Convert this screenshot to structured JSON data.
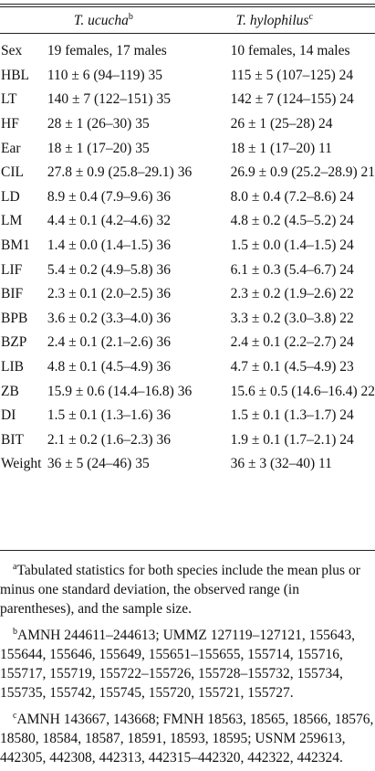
{
  "header": {
    "species1": "T. ucucha",
    "species1_mark": "b",
    "species2": "T. hylophilus",
    "species2_mark": "c"
  },
  "rows": [
    {
      "label": "Sex",
      "v1": "19 females, 17 males",
      "v2": "10 females, 14 males"
    },
    {
      "label": "HBL",
      "v1": "110 ± 6 (94–119) 35",
      "v2": "115 ± 5 (107–125) 24"
    },
    {
      "label": "LT",
      "v1": "140 ± 7 (122–151) 35",
      "v2": "142 ± 7 (124–155) 24"
    },
    {
      "label": "HF",
      "v1": "28 ± 1 (26–30) 35",
      "v2": "26 ± 1 (25–28) 24"
    },
    {
      "label": "Ear",
      "v1": "18 ± 1 (17–20) 35",
      "v2": "18 ± 1 (17–20) 11"
    },
    {
      "label": "CIL",
      "v1": "27.8 ± 0.9 (25.8–29.1) 36",
      "v2": "26.9 ± 0.9 (25.2–28.9) 21"
    },
    {
      "label": "LD",
      "v1": "8.9 ± 0.4 (7.9–9.6) 36",
      "v2": "8.0 ± 0.4 (7.2–8.6) 24"
    },
    {
      "label": "LM",
      "v1": "4.4 ± 0.1 (4.2–4.6) 32",
      "v2": "4.8 ± 0.2 (4.5–5.2) 24"
    },
    {
      "label": "BM1",
      "v1": "1.4 ± 0.0 (1.4–1.5) 36",
      "v2": "1.5 ± 0.0 (1.4–1.5) 24"
    },
    {
      "label": "LIF",
      "v1": "5.4 ± 0.2 (4.9–5.8) 36",
      "v2": "6.1 ± 0.3 (5.4–6.7) 24"
    },
    {
      "label": "BIF",
      "v1": "2.3 ± 0.1 (2.0–2.5) 36",
      "v2": "2.3 ± 0.2 (1.9–2.6) 22"
    },
    {
      "label": "BPB",
      "v1": "3.6 ± 0.2 (3.3–4.0) 36",
      "v2": "3.3 ± 0.2 (3.0–3.8) 22"
    },
    {
      "label": "BZP",
      "v1": "2.4 ± 0.1 (2.1–2.6) 36",
      "v2": "2.4 ± 0.1 (2.2–2.7) 24"
    },
    {
      "label": "LIB",
      "v1": "4.8 ± 0.1 (4.5–4.9) 36",
      "v2": "4.7 ± 0.1 (4.5–4.9) 23"
    },
    {
      "label": "ZB",
      "v1": "15.9 ± 0.6 (14.4–16.8) 36",
      "v2": "15.6 ± 0.5 (14.6–16.4) 22"
    },
    {
      "label": "DI",
      "v1": "1.5 ± 0.1 (1.3–1.6) 36",
      "v2": "1.5 ± 0.1 (1.3–1.7) 24"
    },
    {
      "label": "BIT",
      "v1": "2.1 ± 0.2 (1.6–2.3) 36",
      "v2": "1.9 ± 0.1 (1.7–2.1) 24"
    },
    {
      "label": "Weight",
      "v1": "36 ± 5 (24–46) 35",
      "v2": "36 ± 3 (32–40) 11"
    }
  ],
  "footnotes": [
    {
      "mark": "a",
      "text": "Tabulated statistics for both species include the mean plus or minus one standard deviation, the observed range (in parentheses), and the sample size."
    },
    {
      "mark": "b",
      "text": "AMNH 244611–244613; UMMZ 127119–127121, 155643, 155644, 155646, 155649, 155651–155655, 155714, 155716, 155717, 155719, 155722–155726, 155728–155732, 155734, 155735, 155742, 155745, 155720, 155721, 155727."
    },
    {
      "mark": "c",
      "text": "AMNH 143667, 143668; FMNH 18563, 18565, 18566, 18576, 18580, 18584, 18587, 18591, 18593, 18595; USNM 259613, 442305, 442308, 442313, 442315–442320, 442322, 442324."
    }
  ]
}
